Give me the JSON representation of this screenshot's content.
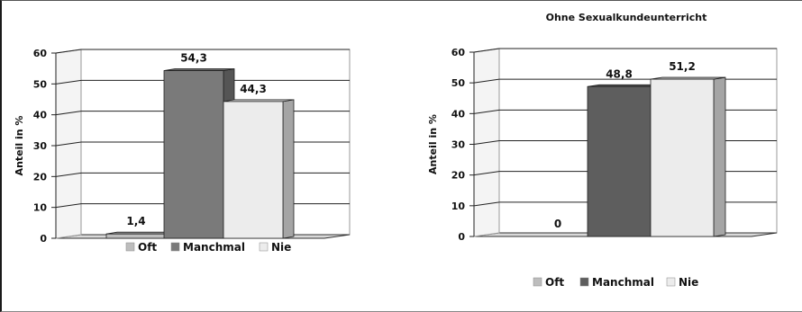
{
  "chart_data": [
    {
      "type": "bar",
      "title": "",
      "ylabel": "Anteil in %",
      "ylim": [
        0,
        60
      ],
      "yticks": [
        0,
        10,
        20,
        30,
        40,
        50,
        60
      ],
      "categories": [
        "Oft",
        "Manchmal",
        "Nie"
      ],
      "values": [
        1.4,
        54.3,
        44.3
      ],
      "data_labels": [
        "1,4",
        "54,3",
        "44,3"
      ],
      "colors": [
        "#bdbdbd",
        "#7a7a7a",
        "#ececec"
      ],
      "grid": true,
      "legend": "bottom"
    },
    {
      "type": "bar",
      "title": "Ohne Sexualkundeunterricht",
      "ylabel": "Anteil in %",
      "ylim": [
        0,
        60
      ],
      "yticks": [
        0,
        10,
        20,
        30,
        40,
        50,
        60
      ],
      "categories": [
        "Oft",
        "Manchmal",
        "Nie"
      ],
      "values": [
        0,
        48.8,
        51.2
      ],
      "data_labels": [
        "0",
        "48,8",
        "51,2"
      ],
      "colors": [
        "#bdbdbd",
        "#5e5e5e",
        "#ececec"
      ],
      "grid": true,
      "legend": "bottom"
    }
  ]
}
